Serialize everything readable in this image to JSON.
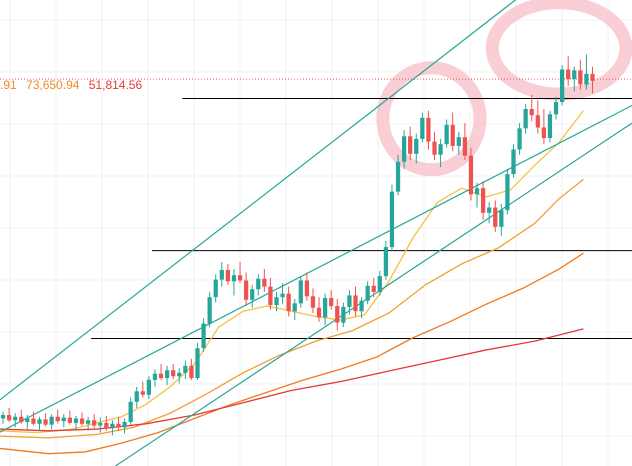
{
  "readout": {
    "truncated_value": ".91",
    "value_a": "73,650.94",
    "value_b": "51,814.56"
  },
  "colors": {
    "up": "#26a69a",
    "down": "#ef5350",
    "ma_fast": "#f5c242",
    "ma_mid": "#f0a030",
    "ma_slow": "#f07a1e",
    "ma_long": "#e53935",
    "trend": "#26a69a",
    "level": "#000000",
    "highlight": "#f8c6cc",
    "readout_a": "#ef8a2e",
    "readout_b": "#e53935"
  },
  "chart_data": {
    "type": "candlestick",
    "title": "",
    "xlabel": "",
    "ylabel": "",
    "x_range": [
      0,
      104
    ],
    "ylim": [
      27,
      80
    ],
    "last_price": 71.0,
    "candles": [
      [
        0,
        32.4,
        33.2,
        31.8,
        32.8
      ],
      [
        1,
        32.8,
        33.6,
        32.0,
        32.2
      ],
      [
        2,
        32.2,
        33.0,
        31.4,
        32.6
      ],
      [
        3,
        32.6,
        33.4,
        31.8,
        32.0
      ],
      [
        4,
        32.0,
        32.8,
        31.2,
        32.4
      ],
      [
        5,
        32.4,
        33.2,
        31.6,
        31.8
      ],
      [
        6,
        31.8,
        32.6,
        31.0,
        32.3
      ],
      [
        7,
        32.3,
        33.0,
        31.5,
        31.7
      ],
      [
        8,
        31.7,
        32.9,
        31.2,
        32.6
      ],
      [
        9,
        32.6,
        33.4,
        31.8,
        32.1
      ],
      [
        10,
        32.1,
        32.9,
        31.4,
        32.5
      ],
      [
        11,
        32.5,
        33.3,
        31.7,
        31.9
      ],
      [
        12,
        31.9,
        32.7,
        31.1,
        32.4
      ],
      [
        13,
        32.4,
        33.1,
        31.6,
        31.8
      ],
      [
        14,
        31.8,
        32.6,
        31.0,
        32.2
      ],
      [
        15,
        32.2,
        32.9,
        31.3,
        31.6
      ],
      [
        16,
        31.6,
        32.5,
        30.8,
        31.9
      ],
      [
        17,
        31.9,
        32.7,
        31.0,
        31.3
      ],
      [
        18,
        31.3,
        32.2,
        30.5,
        31.8
      ],
      [
        19,
        31.8,
        32.6,
        31.0,
        31.4
      ],
      [
        20,
        31.4,
        32.4,
        30.7,
        32.0
      ],
      [
        21,
        32.0,
        34.8,
        31.7,
        34.3
      ],
      [
        22,
        34.3,
        36.0,
        33.6,
        35.5
      ],
      [
        23,
        35.5,
        36.6,
        34.8,
        35.1
      ],
      [
        24,
        35.1,
        37.2,
        34.6,
        36.8
      ],
      [
        25,
        36.8,
        38.0,
        36.0,
        37.5
      ],
      [
        26,
        37.5,
        38.6,
        36.8,
        37.0
      ],
      [
        27,
        37.0,
        38.4,
        36.2,
        37.9
      ],
      [
        28,
        37.9,
        38.6,
        36.9,
        37.2
      ],
      [
        29,
        37.2,
        38.1,
        36.4,
        37.6
      ],
      [
        30,
        37.6,
        39.0,
        36.9,
        38.4
      ],
      [
        31,
        38.4,
        39.2,
        36.8,
        37.0
      ],
      [
        32,
        37.0,
        41.0,
        36.8,
        40.4
      ],
      [
        33,
        40.4,
        43.8,
        40.0,
        43.2
      ],
      [
        34,
        43.2,
        46.8,
        42.8,
        46.2
      ],
      [
        35,
        46.2,
        48.8,
        45.6,
        48.2
      ],
      [
        36,
        48.2,
        50.2,
        47.4,
        49.3
      ],
      [
        37,
        49.3,
        50.0,
        47.6,
        48.0
      ],
      [
        38,
        48.0,
        49.4,
        46.4,
        48.7
      ],
      [
        39,
        48.7,
        50.2,
        47.8,
        48.1
      ],
      [
        40,
        48.1,
        49.0,
        45.2,
        45.9
      ],
      [
        41,
        45.9,
        47.6,
        45.0,
        47.1
      ],
      [
        42,
        47.1,
        48.8,
        46.4,
        48.3
      ],
      [
        43,
        48.3,
        49.4,
        46.8,
        47.4
      ],
      [
        44,
        47.4,
        48.4,
        44.8,
        45.3
      ],
      [
        45,
        45.3,
        46.8,
        44.6,
        46.2
      ],
      [
        46,
        46.2,
        47.8,
        45.4,
        46.6
      ],
      [
        47,
        46.6,
        47.4,
        44.0,
        44.6
      ],
      [
        48,
        44.6,
        46.0,
        43.6,
        45.5
      ],
      [
        49,
        45.5,
        48.6,
        45.0,
        48.1
      ],
      [
        50,
        48.1,
        49.0,
        45.8,
        46.3
      ],
      [
        51,
        46.3,
        47.2,
        44.4,
        45.0
      ],
      [
        52,
        45.0,
        46.2,
        43.4,
        43.9
      ],
      [
        53,
        43.9,
        46.6,
        43.0,
        46.1
      ],
      [
        54,
        46.1,
        47.0,
        44.8,
        45.2
      ],
      [
        55,
        45.2,
        46.0,
        42.4,
        43.3
      ],
      [
        56,
        43.3,
        45.6,
        42.8,
        45.1
      ],
      [
        57,
        45.1,
        47.0,
        44.2,
        46.4
      ],
      [
        58,
        46.4,
        47.4,
        44.0,
        44.6
      ],
      [
        59,
        44.6,
        46.2,
        43.8,
        45.8
      ],
      [
        60,
        45.8,
        48.0,
        45.4,
        47.5
      ],
      [
        61,
        47.5,
        48.4,
        46.2,
        46.8
      ],
      [
        62,
        46.8,
        49.2,
        46.4,
        48.6
      ],
      [
        63,
        48.6,
        52.6,
        48.2,
        51.9
      ],
      [
        64,
        51.9,
        59.0,
        51.4,
        58.2
      ],
      [
        65,
        58.2,
        62.4,
        57.8,
        61.6
      ],
      [
        66,
        61.6,
        65.2,
        60.8,
        64.5
      ],
      [
        67,
        64.5,
        65.6,
        61.8,
        62.5
      ],
      [
        68,
        62.5,
        64.8,
        61.4,
        64.2
      ],
      [
        69,
        64.2,
        67.2,
        63.8,
        66.6
      ],
      [
        70,
        66.6,
        67.4,
        63.0,
        63.9
      ],
      [
        71,
        63.9,
        65.0,
        61.8,
        62.4
      ],
      [
        72,
        62.4,
        64.2,
        61.0,
        63.6
      ],
      [
        73,
        63.6,
        66.4,
        63.2,
        65.8
      ],
      [
        74,
        65.8,
        67.2,
        62.8,
        63.4
      ],
      [
        75,
        63.4,
        65.0,
        62.4,
        64.4
      ],
      [
        76,
        64.4,
        66.0,
        61.8,
        62.3
      ],
      [
        77,
        62.3,
        63.2,
        57.2,
        57.9
      ],
      [
        78,
        57.9,
        59.2,
        56.4,
        58.6
      ],
      [
        79,
        58.6,
        59.4,
        55.0,
        55.8
      ],
      [
        80,
        55.8,
        57.0,
        54.6,
        56.4
      ],
      [
        81,
        56.4,
        57.2,
        53.6,
        54.2
      ],
      [
        82,
        54.2,
        56.8,
        53.2,
        56.1
      ],
      [
        83,
        56.1,
        60.8,
        55.6,
        60.2
      ],
      [
        84,
        60.2,
        63.6,
        59.8,
        63.0
      ],
      [
        85,
        63.0,
        66.0,
        62.4,
        65.4
      ],
      [
        86,
        65.4,
        68.2,
        64.8,
        67.6
      ],
      [
        87,
        67.6,
        69.2,
        66.2,
        66.9
      ],
      [
        88,
        66.9,
        68.6,
        64.8,
        65.5
      ],
      [
        89,
        65.5,
        67.6,
        63.6,
        64.3
      ],
      [
        90,
        64.3,
        67.4,
        63.8,
        67.0
      ],
      [
        91,
        67.0,
        69.0,
        66.4,
        68.4
      ],
      [
        92,
        68.4,
        72.6,
        68.0,
        72.1
      ],
      [
        93,
        72.1,
        73.6,
        70.2,
        71.0
      ],
      [
        94,
        71.0,
        72.4,
        69.6,
        72.0
      ],
      [
        95,
        72.0,
        73.2,
        69.8,
        70.4
      ],
      [
        96,
        70.4,
        73.8,
        69.8,
        71.6
      ],
      [
        97,
        71.6,
        72.4,
        69.4,
        70.8
      ]
    ],
    "moving_averages": [
      {
        "points": [
          [
            0,
            31.0
          ],
          [
            6,
            30.8
          ],
          [
            12,
            31.2
          ],
          [
            16,
            31.9
          ],
          [
            20,
            32.6
          ],
          [
            24,
            34.0
          ],
          [
            28,
            36.0
          ],
          [
            32,
            38.6
          ],
          [
            36,
            42.8
          ],
          [
            40,
            44.6
          ],
          [
            44,
            45.2
          ],
          [
            48,
            44.6
          ],
          [
            52,
            44.0
          ],
          [
            56,
            43.6
          ],
          [
            60,
            44.2
          ],
          [
            64,
            48.0
          ],
          [
            68,
            53.0
          ],
          [
            72,
            57.0
          ],
          [
            76,
            58.6
          ],
          [
            80,
            57.6
          ],
          [
            84,
            58.4
          ],
          [
            88,
            61.2
          ],
          [
            92,
            63.8
          ],
          [
            96,
            67.4
          ]
        ]
      },
      {
        "points": [
          [
            0,
            30.4
          ],
          [
            8,
            30.2
          ],
          [
            16,
            30.6
          ],
          [
            22,
            31.4
          ],
          [
            28,
            33.0
          ],
          [
            34,
            35.2
          ],
          [
            40,
            37.6
          ],
          [
            46,
            39.6
          ],
          [
            52,
            41.2
          ],
          [
            58,
            42.4
          ],
          [
            64,
            44.4
          ],
          [
            70,
            47.6
          ],
          [
            76,
            50.0
          ],
          [
            82,
            51.8
          ],
          [
            88,
            54.6
          ],
          [
            92,
            57.4
          ],
          [
            96,
            59.6
          ]
        ]
      },
      {
        "points": [
          [
            0,
            29.0
          ],
          [
            8,
            28.4
          ],
          [
            14,
            28.6
          ],
          [
            20,
            29.6
          ],
          [
            26,
            30.8
          ],
          [
            32,
            32.4
          ],
          [
            38,
            34.0
          ],
          [
            44,
            35.4
          ],
          [
            50,
            36.8
          ],
          [
            56,
            38.0
          ],
          [
            62,
            39.4
          ],
          [
            68,
            41.6
          ],
          [
            74,
            43.4
          ],
          [
            80,
            45.4
          ],
          [
            86,
            47.2
          ],
          [
            92,
            49.4
          ],
          [
            96,
            51.2
          ]
        ]
      },
      {
        "points": [
          [
            0,
            31.2
          ],
          [
            8,
            31.0
          ],
          [
            16,
            31.2
          ],
          [
            24,
            31.8
          ],
          [
            32,
            32.8
          ],
          [
            40,
            34.2
          ],
          [
            48,
            35.6
          ],
          [
            56,
            36.6
          ],
          [
            64,
            37.8
          ],
          [
            72,
            39.0
          ],
          [
            80,
            40.2
          ],
          [
            88,
            41.2
          ],
          [
            96,
            42.6
          ]
        ]
      }
    ],
    "trend_lines": [
      {
        "points": [
          [
            -1,
            34.0
          ],
          [
            96,
            86.0
          ]
        ]
      },
      {
        "points": [
          [
            19,
            27.0
          ],
          [
            104,
            66.0
          ]
        ]
      },
      {
        "points": [
          [
            -1,
            30.5
          ],
          [
            104,
            68.0
          ]
        ]
      }
    ],
    "horizontal_levels": [
      {
        "y": 68.8,
        "from_x": 30
      },
      {
        "y": 51.5,
        "from_x": 25
      },
      {
        "y": 41.5,
        "from_x": 15
      }
    ],
    "highlights": [
      {
        "cx": 71,
        "cy": 66.5,
        "rx_bars": 8,
        "ry_units": 5.8
      },
      {
        "cx": 92,
        "cy": 74.5,
        "rx_bars": 11,
        "ry_units": 5.2
      }
    ]
  }
}
